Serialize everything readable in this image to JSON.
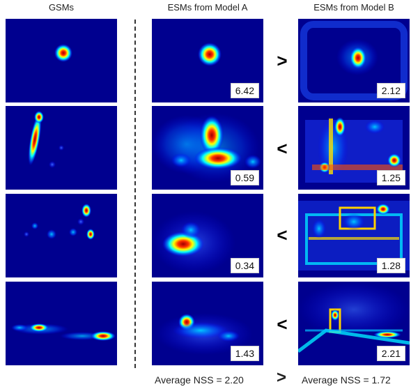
{
  "headers": {
    "gsm": "GSMs",
    "model_a": "ESMs from Model A",
    "model_b": "ESMs from Model B"
  },
  "rows": [
    {
      "score_a": "6.42",
      "comparison": ">",
      "score_b": "2.12"
    },
    {
      "score_a": "0.59",
      "comparison": "<",
      "score_b": "1.25"
    },
    {
      "score_a": "0.34",
      "comparison": "<",
      "score_b": "1.28"
    },
    {
      "score_a": "1.43",
      "comparison": "<",
      "score_b": "2.21"
    }
  ],
  "footer": {
    "avg_a": "Average NSS = 2.20",
    "avg_comparison": ">",
    "avg_b": "Average NSS = 1.72"
  },
  "colors": {
    "background_map": "#00008f",
    "hot": "#c80000",
    "warm": "#ffff00",
    "cool": "#00ffff"
  }
}
